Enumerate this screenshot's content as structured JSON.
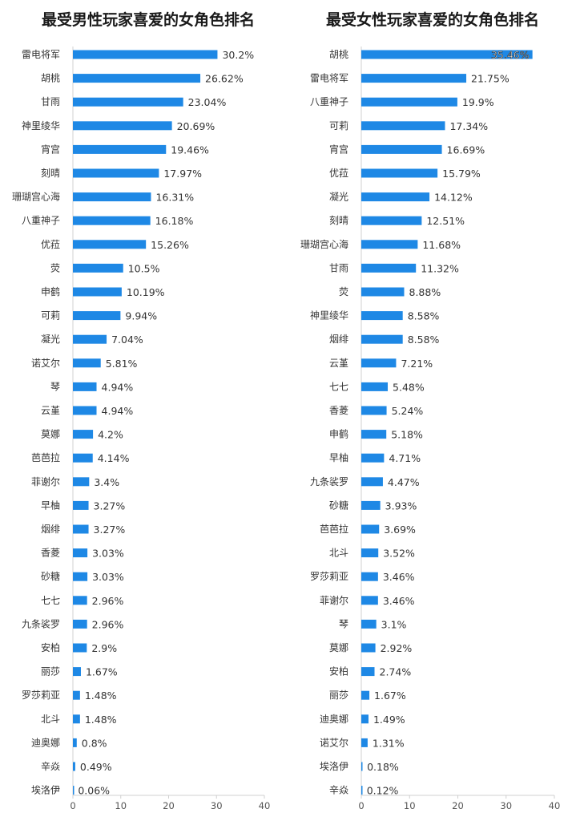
{
  "chart_data": [
    {
      "type": "bar",
      "orientation": "horizontal",
      "title": "最受男性玩家喜爱的女角色排名",
      "categories": [
        "雷电将军",
        "胡桃",
        "甘雨",
        "神里绫华",
        "宵宫",
        "刻晴",
        "珊瑚宫心海",
        "八重神子",
        "优菈",
        "荧",
        "申鹤",
        "可莉",
        "凝光",
        "诺艾尔",
        "琴",
        "云堇",
        "莫娜",
        "芭芭拉",
        "菲谢尔",
        "早柚",
        "烟绯",
        "香菱",
        "砂糖",
        "七七",
        "九条裟罗",
        "安柏",
        "丽莎",
        "罗莎莉亚",
        "北斗",
        "迪奥娜",
        "辛焱",
        "埃洛伊"
      ],
      "values": [
        30.2,
        26.62,
        23.04,
        20.69,
        19.46,
        17.97,
        16.31,
        16.18,
        15.26,
        10.5,
        10.19,
        9.94,
        7.04,
        5.81,
        4.94,
        4.94,
        4.2,
        4.14,
        3.4,
        3.27,
        3.27,
        3.03,
        3.03,
        2.96,
        2.96,
        2.9,
        1.67,
        1.48,
        1.48,
        0.8,
        0.49,
        0.06
      ],
      "value_labels": [
        "30.2%",
        "26.62%",
        "23.04%",
        "20.69%",
        "19.46%",
        "17.97%",
        "16.31%",
        "16.18%",
        "15.26%",
        "10.5%",
        "10.19%",
        "9.94%",
        "7.04%",
        "5.81%",
        "4.94%",
        "4.94%",
        "4.2%",
        "4.14%",
        "3.4%",
        "3.27%",
        "3.27%",
        "3.03%",
        "3.03%",
        "2.96%",
        "2.96%",
        "2.9%",
        "1.67%",
        "1.48%",
        "1.48%",
        "0.8%",
        "0.49%",
        "0.06%"
      ],
      "xlim": [
        0,
        40
      ],
      "xticks": [
        0,
        10,
        20,
        30,
        40
      ],
      "grid": false,
      "bar_color": "#1e88e5"
    },
    {
      "type": "bar",
      "orientation": "horizontal",
      "title": "最受女性玩家喜爱的女角色排名",
      "categories": [
        "胡桃",
        "雷电将军",
        "八重神子",
        "可莉",
        "宵宫",
        "优菈",
        "凝光",
        "刻晴",
        "珊瑚宫心海",
        "甘雨",
        "荧",
        "神里绫华",
        "烟绯",
        "云堇",
        "七七",
        "香菱",
        "申鹤",
        "早柚",
        "九条裟罗",
        "砂糖",
        "芭芭拉",
        "北斗",
        "罗莎莉亚",
        "菲谢尔",
        "琴",
        "莫娜",
        "安柏",
        "丽莎",
        "迪奥娜",
        "诺艾尔",
        "埃洛伊",
        "辛焱"
      ],
      "values": [
        35.46,
        21.75,
        19.9,
        17.34,
        16.69,
        15.79,
        14.12,
        12.51,
        11.68,
        11.32,
        8.88,
        8.58,
        8.58,
        7.21,
        5.48,
        5.24,
        5.18,
        4.71,
        4.47,
        3.93,
        3.69,
        3.52,
        3.46,
        3.46,
        3.1,
        2.92,
        2.74,
        1.67,
        1.49,
        1.31,
        0.18,
        0.12
      ],
      "value_labels": [
        "35.46%",
        "21.75%",
        "19.9%",
        "17.34%",
        "16.69%",
        "15.79%",
        "14.12%",
        "12.51%",
        "11.68%",
        "11.32%",
        "8.88%",
        "8.58%",
        "8.58%",
        "7.21%",
        "5.48%",
        "5.24%",
        "5.18%",
        "4.71%",
        "4.47%",
        "3.93%",
        "3.69%",
        "3.52%",
        "3.46%",
        "3.46%",
        "3.1%",
        "2.92%",
        "2.74%",
        "1.67%",
        "1.49%",
        "1.31%",
        "0.18%",
        "0.12%"
      ],
      "xlim": [
        0,
        40
      ],
      "xticks": [
        0,
        10,
        20,
        30,
        40
      ],
      "grid": false,
      "bar_color": "#1e88e5"
    }
  ]
}
